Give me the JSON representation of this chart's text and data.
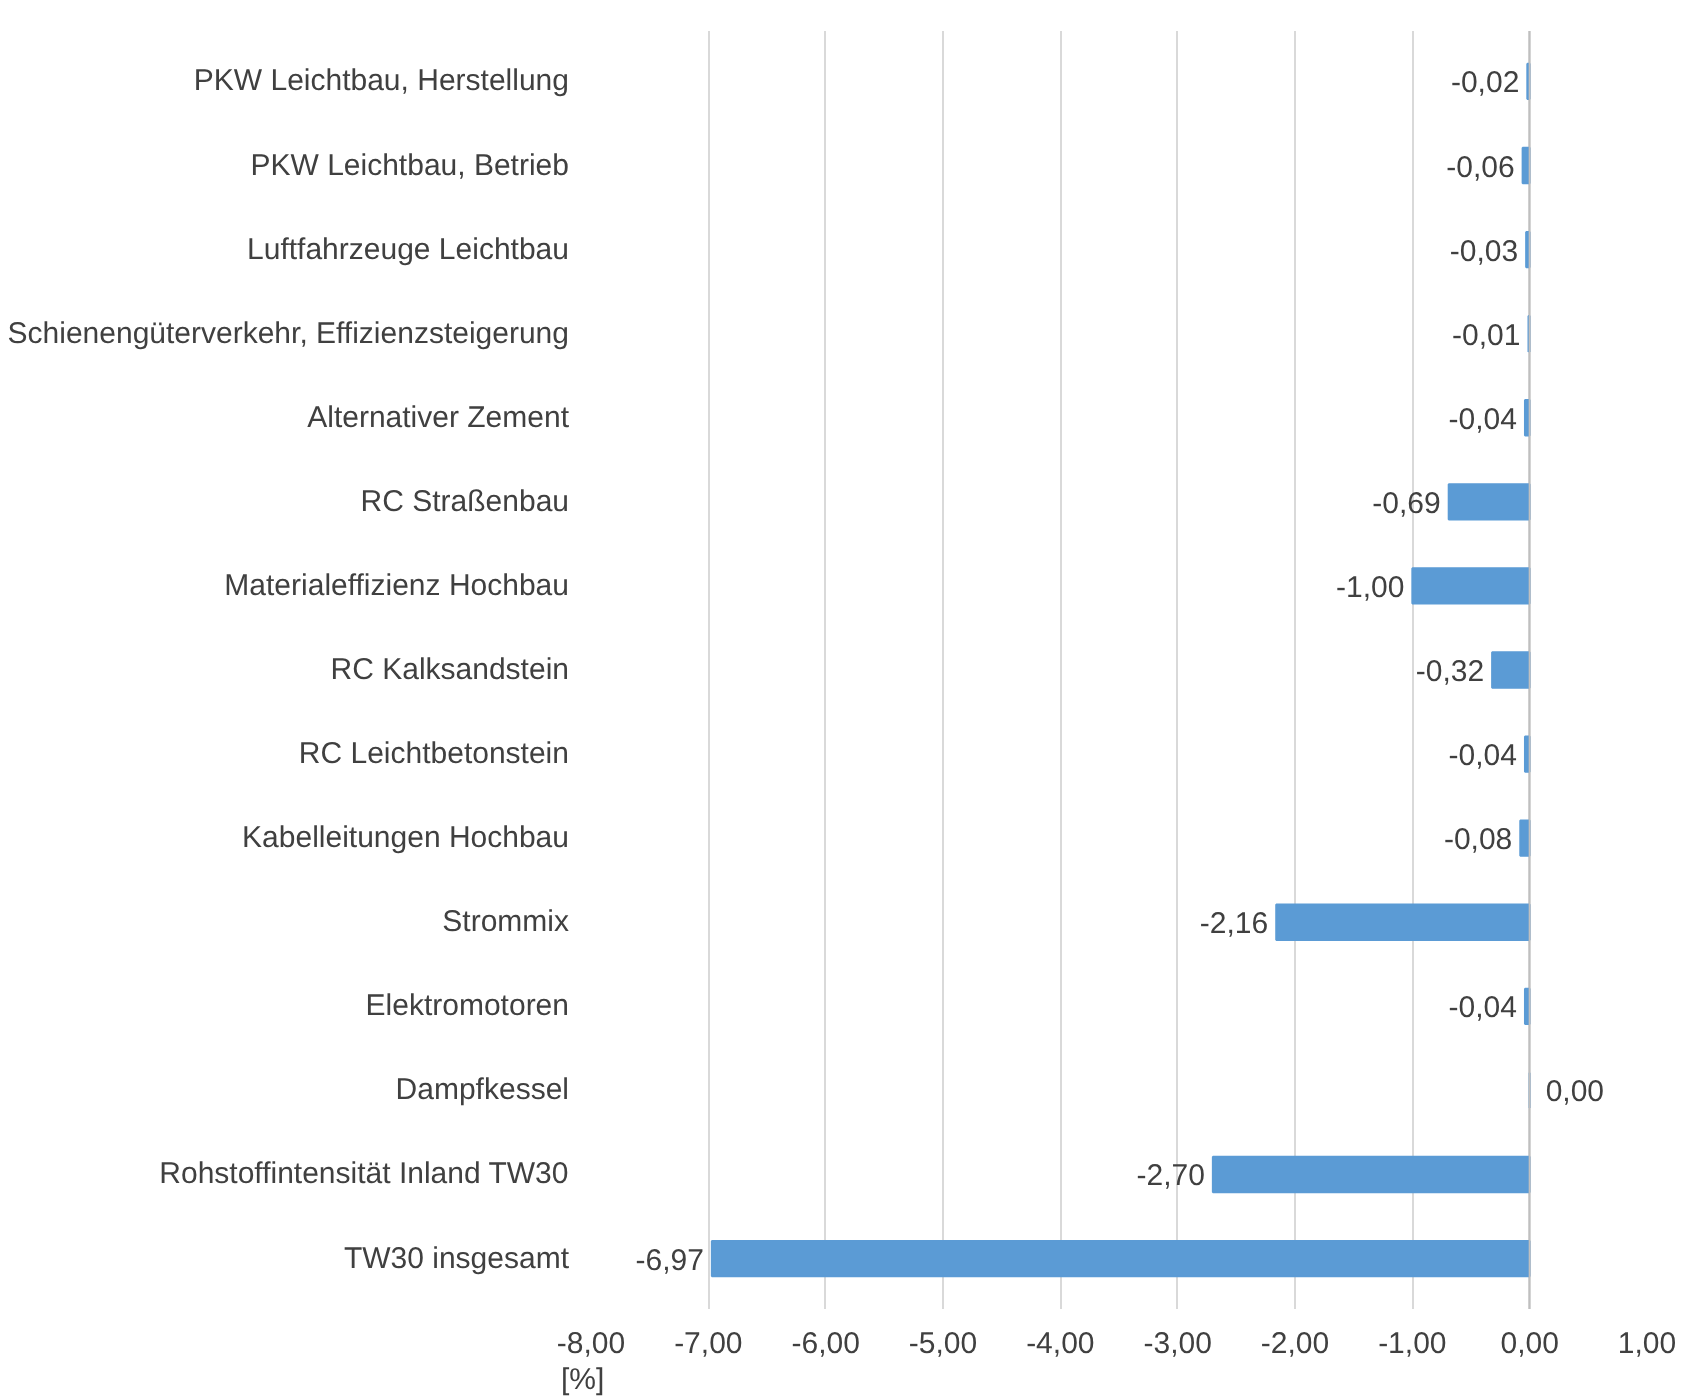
{
  "chart_data": {
    "type": "bar",
    "orientation": "horizontal",
    "xlabel": "[%]",
    "categories": [
      "PKW Leichtbau, Herstellung",
      "PKW Leichtbau, Betrieb",
      "Luftfahrzeuge Leichtbau",
      "Schienengüterverkehr, Effizienzsteigerung",
      "Alternativer Zement",
      "RC Straßenbau",
      "Materialeffizienz Hochbau",
      "RC Kalksandstein",
      "RC Leichtbetonstein",
      "Kabelleitungen Hochbau",
      "Strommix",
      "Elektromotoren",
      "Dampfkessel",
      "Rohstoffintensität Inland TW30",
      "TW30 insgesamt"
    ],
    "values": [
      -0.02,
      -0.06,
      -0.03,
      -0.01,
      -0.04,
      -0.69,
      -1.0,
      -0.32,
      -0.04,
      -0.08,
      -2.16,
      -0.04,
      0.0,
      -2.7,
      -6.97
    ],
    "value_labels": [
      "-0,02",
      "-0,06",
      "-0,03",
      "-0,01",
      "-0,04",
      "-0,69",
      "-1,00",
      "-0,32",
      "-0,04",
      "-0,08",
      "-2,16",
      "-0,04",
      "0,00",
      "-2,70",
      "-6,97"
    ],
    "color": "#5b9bd5",
    "xlim": [
      -8,
      1
    ],
    "xticks": [
      {
        "value": -8,
        "label": "-8,00"
      },
      {
        "value": -7,
        "label": "-7,00"
      },
      {
        "value": -6,
        "label": "-6,00"
      },
      {
        "value": -5,
        "label": "-5,00"
      },
      {
        "value": -4,
        "label": "-4,00"
      },
      {
        "value": -3,
        "label": "-3,00"
      },
      {
        "value": -2,
        "label": "-2,00"
      },
      {
        "value": -1,
        "label": "-1,00"
      },
      {
        "value": 0,
        "label": "0,00"
      },
      {
        "value": 1,
        "label": "1,00"
      }
    ],
    "grid": "x"
  }
}
